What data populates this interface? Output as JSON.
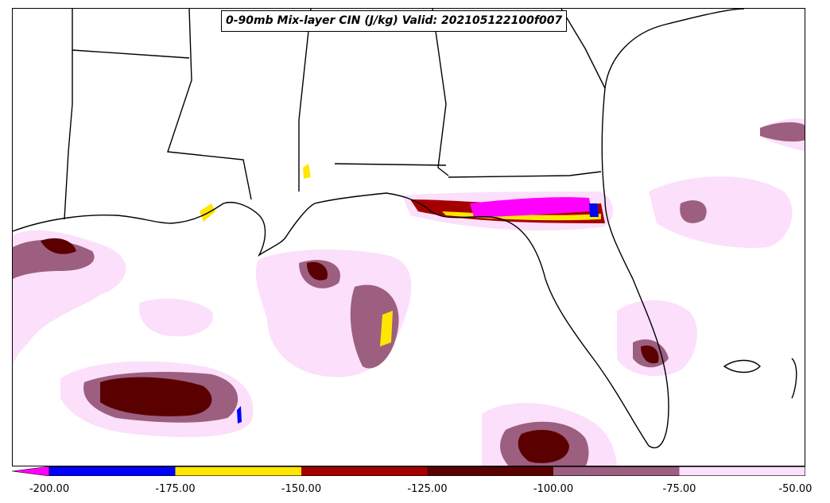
{
  "title": "0-90mb Mix-layer CIN (J/kg) Valid: 202105122100f007",
  "colorbar": {
    "ticks": [
      "-200.00",
      "-175.00",
      "-150.00",
      "-125.00",
      "-100.00",
      "-75.00",
      "-50.00"
    ],
    "bins": [
      {
        "range": "< -200",
        "color": "#ff00ff"
      },
      {
        "range": "-200 to -175",
        "color": "#0000ff"
      },
      {
        "range": "-175 to -150",
        "color": "#ffe600"
      },
      {
        "range": "-150 to -125",
        "color": "#a50000"
      },
      {
        "range": "-125 to -100",
        "color": "#5a0000"
      },
      {
        "range": "-100 to -75",
        "color": "#9c5f7f"
      },
      {
        "range": "-75 to -50",
        "color": "#fbdffb"
      }
    ]
  },
  "map": {
    "region": "Gulf of Mexico / Southeastern US",
    "features": [
      "coastline",
      "state-borders"
    ]
  }
}
